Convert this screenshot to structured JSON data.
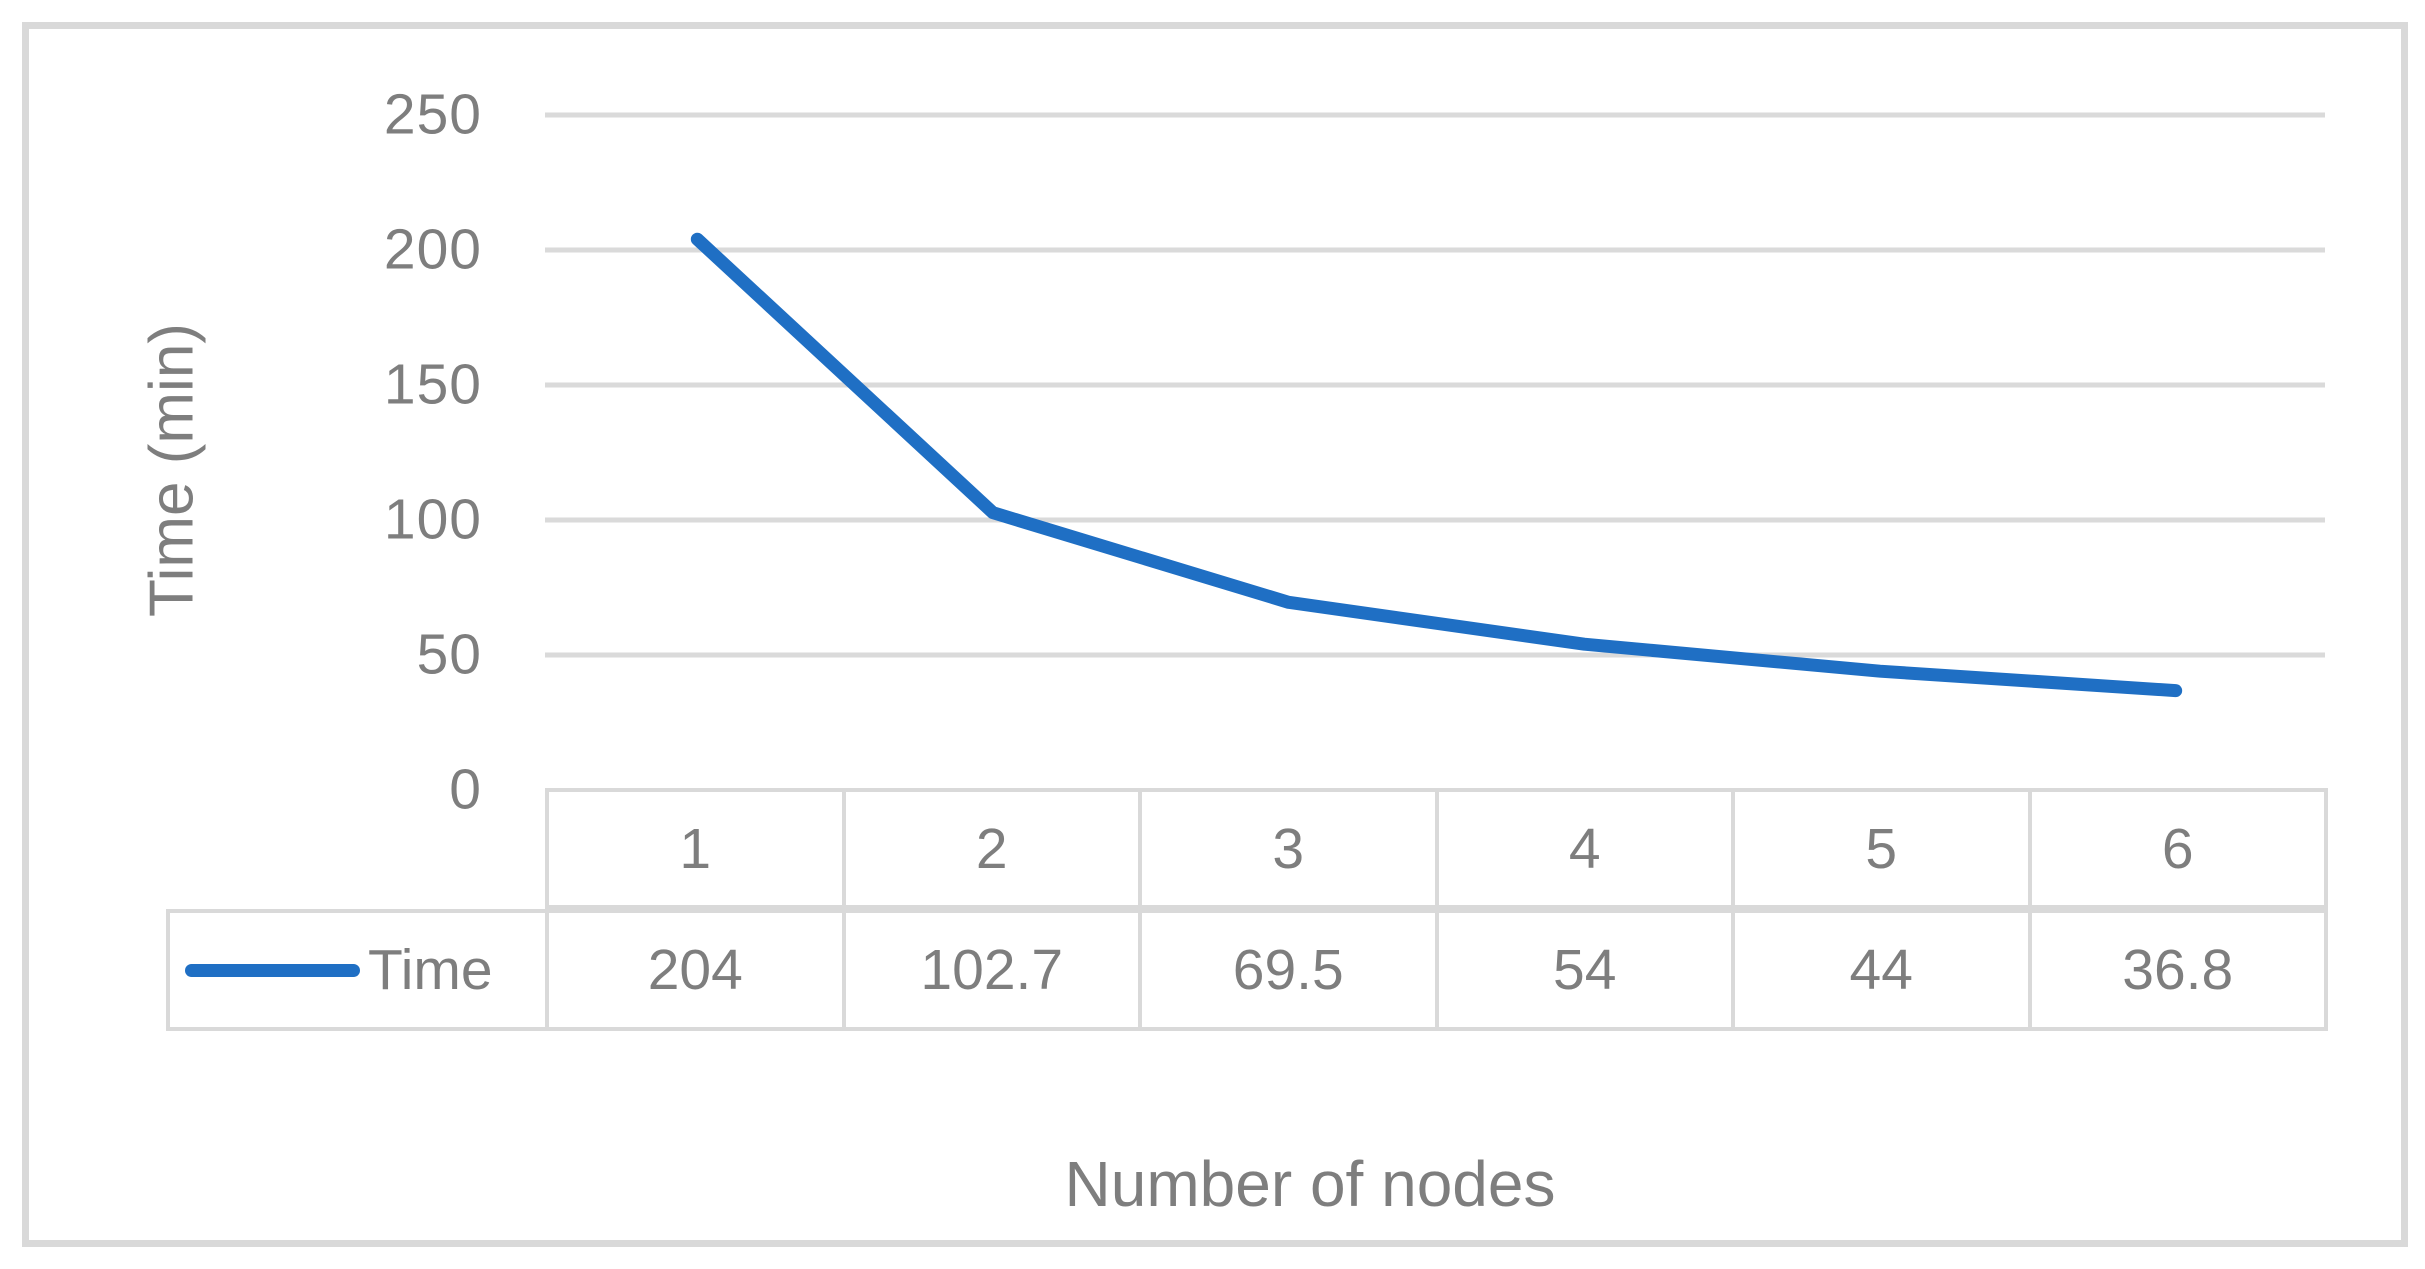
{
  "chart_data": {
    "type": "line",
    "categories": [
      "1",
      "2",
      "3",
      "4",
      "5",
      "6"
    ],
    "series": [
      {
        "name": "Time",
        "values": [
          204,
          102.7,
          69.5,
          54,
          44,
          36.8
        ],
        "color": "#1f6fc4"
      }
    ],
    "xlabel": "Number of nodes",
    "ylabel": "Time (min)",
    "ylim": [
      0,
      250
    ],
    "yticks": [
      250,
      200,
      150,
      100,
      50,
      0
    ],
    "grid": true,
    "legend_position": "data-table-left",
    "colors": {
      "line": "#1f6fc4",
      "gridline": "#dadada",
      "table_border": "#d9d9d9",
      "text": "#7e7e7e",
      "frame_border": "#d9d9d9"
    }
  }
}
